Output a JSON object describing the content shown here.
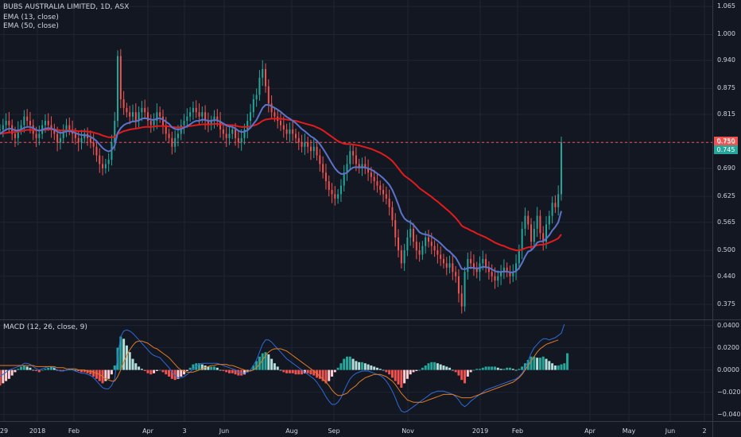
{
  "header": {
    "symbol": "BUBS AUSTRALIA LIMITED, 1D, ASX",
    "ema13": "EMA (13, close)",
    "ema50": "EMA (50, close)",
    "macd": "MACD (12, 26, close, 9)"
  },
  "price_badges": {
    "last": "0.750",
    "prev": "0.745"
  },
  "colors": {
    "bg": "#131722",
    "grid": "#1f2433",
    "up": "#26a69a",
    "down": "#ef5350",
    "ema13": "#5b74c9",
    "ema50": "#e31b1b",
    "macd": "#2f6ad6",
    "signal": "#e07b24"
  },
  "chart_data": {
    "type": "candlestick",
    "price_ticks": [
      "1.065",
      "1.000",
      "0.940",
      "0.875",
      "0.815",
      "0.750",
      "0.690",
      "0.625",
      "0.565",
      "0.500",
      "0.440",
      "0.375"
    ],
    "macd_ticks": [
      "0.0400",
      "0.0200",
      "0.0000",
      "−0.0200",
      "−0.0400"
    ],
    "x_ticks": [
      "29",
      "2018",
      "Feb",
      "Apr",
      "3",
      "Jun",
      "Aug",
      "Sep",
      "Nov",
      "2019",
      "Feb",
      "Apr",
      "May",
      "Jun",
      "2"
    ],
    "ylim": [
      0.34,
      1.08
    ],
    "macd_ylim": [
      -0.046,
      0.044
    ],
    "close": [
      0.78,
      0.79,
      0.8,
      0.79,
      0.77,
      0.76,
      0.78,
      0.79,
      0.81,
      0.8,
      0.79,
      0.77,
      0.76,
      0.77,
      0.79,
      0.8,
      0.79,
      0.78,
      0.77,
      0.75,
      0.76,
      0.78,
      0.79,
      0.78,
      0.77,
      0.76,
      0.75,
      0.76,
      0.77,
      0.76,
      0.75,
      0.74,
      0.72,
      0.7,
      0.69,
      0.7,
      0.71,
      0.75,
      0.8,
      0.95,
      0.85,
      0.83,
      0.82,
      0.81,
      0.82,
      0.8,
      0.82,
      0.83,
      0.82,
      0.8,
      0.79,
      0.8,
      0.82,
      0.81,
      0.79,
      0.77,
      0.76,
      0.74,
      0.76,
      0.77,
      0.79,
      0.8,
      0.81,
      0.82,
      0.83,
      0.82,
      0.81,
      0.82,
      0.8,
      0.79,
      0.8,
      0.81,
      0.8,
      0.78,
      0.77,
      0.76,
      0.77,
      0.78,
      0.76,
      0.75,
      0.76,
      0.78,
      0.8,
      0.82,
      0.85,
      0.86,
      0.9,
      0.92,
      0.88,
      0.84,
      0.82,
      0.81,
      0.8,
      0.79,
      0.78,
      0.77,
      0.78,
      0.77,
      0.76,
      0.75,
      0.74,
      0.75,
      0.74,
      0.73,
      0.74,
      0.72,
      0.7,
      0.68,
      0.66,
      0.64,
      0.63,
      0.62,
      0.63,
      0.65,
      0.68,
      0.7,
      0.73,
      0.72,
      0.7,
      0.69,
      0.7,
      0.69,
      0.68,
      0.67,
      0.66,
      0.65,
      0.64,
      0.63,
      0.62,
      0.6,
      0.57,
      0.53,
      0.5,
      0.47,
      0.5,
      0.53,
      0.55,
      0.52,
      0.5,
      0.49,
      0.51,
      0.53,
      0.52,
      0.51,
      0.5,
      0.49,
      0.48,
      0.47,
      0.46,
      0.47,
      0.45,
      0.44,
      0.4,
      0.37,
      0.45,
      0.48,
      0.47,
      0.46,
      0.45,
      0.47,
      0.48,
      0.46,
      0.45,
      0.44,
      0.43,
      0.44,
      0.45,
      0.46,
      0.45,
      0.44,
      0.45,
      0.47,
      0.5,
      0.55,
      0.58,
      0.56,
      0.52,
      0.55,
      0.58,
      0.54,
      0.52,
      0.56,
      0.58,
      0.61,
      0.6,
      0.63,
      0.75
    ],
    "ema13": [
      0.77,
      0.775,
      0.78,
      0.782,
      0.781,
      0.778,
      0.778,
      0.78,
      0.784,
      0.786,
      0.786,
      0.783,
      0.779,
      0.777,
      0.779,
      0.782,
      0.783,
      0.782,
      0.78,
      0.775,
      0.772,
      0.773,
      0.776,
      0.776,
      0.775,
      0.772,
      0.769,
      0.767,
      0.767,
      0.766,
      0.763,
      0.759,
      0.753,
      0.745,
      0.737,
      0.732,
      0.729,
      0.732,
      0.742,
      0.772,
      0.783,
      0.79,
      0.794,
      0.796,
      0.799,
      0.799,
      0.801,
      0.805,
      0.806,
      0.805,
      0.803,
      0.802,
      0.805,
      0.806,
      0.803,
      0.798,
      0.793,
      0.785,
      0.781,
      0.78,
      0.781,
      0.784,
      0.788,
      0.792,
      0.797,
      0.8,
      0.8,
      0.803,
      0.802,
      0.8,
      0.8,
      0.802,
      0.801,
      0.798,
      0.794,
      0.789,
      0.787,
      0.786,
      0.782,
      0.777,
      0.774,
      0.775,
      0.778,
      0.784,
      0.793,
      0.802,
      0.816,
      0.83,
      0.837,
      0.837,
      0.834,
      0.83,
      0.826,
      0.821,
      0.815,
      0.809,
      0.805,
      0.8,
      0.795,
      0.788,
      0.781,
      0.776,
      0.77,
      0.764,
      0.76,
      0.754,
      0.746,
      0.736,
      0.725,
      0.713,
      0.701,
      0.69,
      0.682,
      0.677,
      0.677,
      0.68,
      0.687,
      0.692,
      0.693,
      0.692,
      0.693,
      0.692,
      0.69,
      0.687,
      0.683,
      0.678,
      0.673,
      0.667,
      0.66,
      0.652,
      0.64,
      0.624,
      0.606,
      0.586,
      0.574,
      0.568,
      0.565,
      0.559,
      0.551,
      0.542,
      0.538,
      0.537,
      0.535,
      0.532,
      0.527,
      0.522,
      0.516,
      0.509,
      0.502,
      0.497,
      0.49,
      0.483,
      0.471,
      0.457,
      0.456,
      0.459,
      0.46,
      0.459,
      0.458,
      0.459,
      0.462,
      0.461,
      0.46,
      0.456,
      0.452,
      0.45,
      0.45,
      0.451,
      0.451,
      0.449,
      0.449,
      0.452,
      0.459,
      0.471,
      0.486,
      0.497,
      0.5,
      0.507,
      0.518,
      0.521,
      0.521,
      0.527,
      0.535,
      0.546,
      0.554,
      0.565,
      0.591
    ],
    "ema50": [
      0.77,
      0.771,
      0.772,
      0.773,
      0.774,
      0.774,
      0.775,
      0.776,
      0.778,
      0.779,
      0.779,
      0.779,
      0.778,
      0.778,
      0.779,
      0.779,
      0.78,
      0.78,
      0.78,
      0.779,
      0.778,
      0.778,
      0.778,
      0.778,
      0.778,
      0.777,
      0.776,
      0.776,
      0.776,
      0.775,
      0.775,
      0.773,
      0.771,
      0.769,
      0.766,
      0.764,
      0.762,
      0.762,
      0.763,
      0.77,
      0.773,
      0.776,
      0.778,
      0.78,
      0.781,
      0.782,
      0.783,
      0.785,
      0.786,
      0.786,
      0.786,
      0.787,
      0.788,
      0.788,
      0.788,
      0.788,
      0.787,
      0.786,
      0.785,
      0.785,
      0.785,
      0.786,
      0.787,
      0.788,
      0.789,
      0.79,
      0.791,
      0.792,
      0.792,
      0.792,
      0.792,
      0.793,
      0.793,
      0.792,
      0.792,
      0.791,
      0.79,
      0.79,
      0.789,
      0.787,
      0.786,
      0.786,
      0.786,
      0.787,
      0.789,
      0.791,
      0.795,
      0.8,
      0.803,
      0.804,
      0.805,
      0.805,
      0.805,
      0.805,
      0.804,
      0.803,
      0.802,
      0.801,
      0.8,
      0.798,
      0.796,
      0.794,
      0.792,
      0.79,
      0.788,
      0.785,
      0.782,
      0.778,
      0.773,
      0.768,
      0.763,
      0.758,
      0.753,
      0.75,
      0.747,
      0.746,
      0.746,
      0.745,
      0.744,
      0.743,
      0.741,
      0.739,
      0.737,
      0.735,
      0.732,
      0.729,
      0.726,
      0.722,
      0.718,
      0.713,
      0.707,
      0.699,
      0.69,
      0.681,
      0.673,
      0.668,
      0.663,
      0.657,
      0.651,
      0.644,
      0.639,
      0.634,
      0.629,
      0.624,
      0.618,
      0.613,
      0.607,
      0.601,
      0.595,
      0.589,
      0.582,
      0.575,
      0.567,
      0.557,
      0.553,
      0.55,
      0.546,
      0.543,
      0.539,
      0.536,
      0.533,
      0.53,
      0.526,
      0.522,
      0.518,
      0.515,
      0.512,
      0.51,
      0.507,
      0.504,
      0.502,
      0.5,
      0.5,
      0.502,
      0.505,
      0.507,
      0.508,
      0.509,
      0.512,
      0.513,
      0.513,
      0.515,
      0.518,
      0.521,
      0.524,
      0.528,
      0.537
    ],
    "macd_hist": [
      -0.014,
      -0.012,
      -0.01,
      -0.008,
      -0.005,
      -0.002,
      0.001,
      0.003,
      0.004,
      0.003,
      0.002,
      0.0,
      -0.001,
      -0.002,
      0.0,
      0.001,
      0.002,
      0.003,
      0.002,
      0.0,
      -0.001,
      -0.001,
      0.0,
      0.001,
      0.001,
      0.0,
      -0.001,
      -0.002,
      -0.002,
      -0.003,
      -0.004,
      -0.006,
      -0.008,
      -0.01,
      -0.012,
      -0.01,
      -0.008,
      -0.004,
      0.004,
      0.02,
      0.03,
      0.028,
      0.022,
      0.016,
      0.01,
      0.006,
      0.003,
      0.001,
      -0.001,
      -0.003,
      -0.004,
      -0.003,
      -0.001,
      0.0,
      -0.002,
      -0.004,
      -0.006,
      -0.008,
      -0.009,
      -0.008,
      -0.006,
      -0.004,
      -0.001,
      0.002,
      0.005,
      0.006,
      0.006,
      0.005,
      0.004,
      0.003,
      0.003,
      0.003,
      0.002,
      0.0,
      -0.001,
      -0.002,
      -0.003,
      -0.003,
      -0.004,
      -0.005,
      -0.005,
      -0.004,
      -0.002,
      0.0,
      0.004,
      0.008,
      0.012,
      0.015,
      0.016,
      0.014,
      0.01,
      0.006,
      0.003,
      0.0,
      -0.002,
      -0.003,
      -0.003,
      -0.003,
      -0.004,
      -0.004,
      -0.004,
      -0.003,
      -0.003,
      -0.004,
      -0.005,
      -0.007,
      -0.008,
      -0.01,
      -0.012,
      -0.01,
      -0.006,
      -0.002,
      0.002,
      0.006,
      0.01,
      0.012,
      0.012,
      0.01,
      0.008,
      0.007,
      0.007,
      0.006,
      0.005,
      0.004,
      0.003,
      0.002,
      0.001,
      0.0,
      -0.002,
      -0.004,
      -0.007,
      -0.01,
      -0.013,
      -0.016,
      -0.012,
      -0.008,
      -0.004,
      -0.002,
      -0.001,
      0.0,
      0.002,
      0.004,
      0.006,
      0.007,
      0.007,
      0.006,
      0.005,
      0.004,
      0.003,
      0.002,
      0.0,
      -0.002,
      -0.005,
      -0.009,
      -0.012,
      -0.006,
      -0.002,
      0.0,
      0.001,
      0.001,
      0.002,
      0.003,
      0.003,
      0.003,
      0.003,
      0.002,
      0.001,
      0.001,
      0.002,
      0.002,
      0.001,
      0.0,
      0.001,
      0.003,
      0.006,
      0.009,
      0.012,
      0.012,
      0.011,
      0.011,
      0.012,
      0.01,
      0.008,
      0.006,
      0.004,
      0.004,
      0.005,
      0.006,
      0.015
    ],
    "macd_line": [
      -0.006,
      -0.004,
      -0.002,
      0.0,
      0.001,
      0.002,
      0.003,
      0.004,
      0.006,
      0.006,
      0.005,
      0.003,
      0.001,
      0.0,
      0.001,
      0.002,
      0.003,
      0.003,
      0.002,
      0.0,
      -0.001,
      -0.001,
      0.0,
      0.0,
      0.0,
      -0.001,
      -0.002,
      -0.003,
      -0.003,
      -0.004,
      -0.005,
      -0.007,
      -0.01,
      -0.013,
      -0.016,
      -0.017,
      -0.017,
      -0.014,
      -0.008,
      0.012,
      0.03,
      0.035,
      0.036,
      0.035,
      0.033,
      0.03,
      0.027,
      0.024,
      0.021,
      0.018,
      0.015,
      0.013,
      0.012,
      0.011,
      0.008,
      0.005,
      0.002,
      -0.002,
      -0.005,
      -0.007,
      -0.007,
      -0.006,
      -0.004,
      -0.002,
      0.001,
      0.003,
      0.005,
      0.006,
      0.006,
      0.006,
      0.006,
      0.006,
      0.006,
      0.005,
      0.004,
      0.003,
      0.002,
      0.001,
      0.0,
      -0.002,
      -0.003,
      -0.003,
      -0.002,
      0.0,
      0.004,
      0.009,
      0.016,
      0.023,
      0.027,
      0.027,
      0.025,
      0.022,
      0.019,
      0.016,
      0.013,
      0.01,
      0.008,
      0.006,
      0.004,
      0.002,
      0.0,
      -0.002,
      -0.004,
      -0.006,
      -0.008,
      -0.011,
      -0.015,
      -0.019,
      -0.024,
      -0.028,
      -0.031,
      -0.031,
      -0.029,
      -0.025,
      -0.019,
      -0.013,
      -0.008,
      -0.005,
      -0.003,
      -0.002,
      -0.001,
      -0.001,
      -0.001,
      -0.002,
      -0.003,
      -0.004,
      -0.005,
      -0.007,
      -0.01,
      -0.014,
      -0.019,
      -0.025,
      -0.032,
      -0.037,
      -0.038,
      -0.037,
      -0.035,
      -0.033,
      -0.031,
      -0.029,
      -0.027,
      -0.025,
      -0.023,
      -0.021,
      -0.02,
      -0.019,
      -0.019,
      -0.019,
      -0.02,
      -0.021,
      -0.022,
      -0.024,
      -0.027,
      -0.031,
      -0.033,
      -0.031,
      -0.028,
      -0.026,
      -0.024,
      -0.022,
      -0.02,
      -0.018,
      -0.017,
      -0.016,
      -0.015,
      -0.014,
      -0.013,
      -0.012,
      -0.011,
      -0.01,
      -0.009,
      -0.008,
      -0.006,
      -0.003,
      0.002,
      0.008,
      0.015,
      0.02,
      0.023,
      0.026,
      0.028,
      0.028,
      0.027,
      0.028,
      0.029,
      0.031,
      0.033,
      0.041
    ],
    "signal_line": [
      0.004,
      0.004,
      0.004,
      0.004,
      0.004,
      0.004,
      0.004,
      0.004,
      0.004,
      0.004,
      0.004,
      0.004,
      0.003,
      0.003,
      0.003,
      0.003,
      0.003,
      0.003,
      0.003,
      0.002,
      0.002,
      0.002,
      0.001,
      0.001,
      0.001,
      0.001,
      0.0,
      0.0,
      0.0,
      -0.001,
      -0.001,
      -0.002,
      -0.003,
      -0.004,
      -0.006,
      -0.008,
      -0.009,
      -0.01,
      -0.01,
      -0.006,
      0.0,
      0.007,
      0.013,
      0.018,
      0.022,
      0.025,
      0.026,
      0.026,
      0.025,
      0.024,
      0.022,
      0.02,
      0.019,
      0.017,
      0.015,
      0.013,
      0.011,
      0.008,
      0.005,
      0.002,
      0.0,
      -0.001,
      -0.002,
      -0.002,
      -0.002,
      -0.001,
      0.0,
      0.001,
      0.002,
      0.003,
      0.004,
      0.004,
      0.005,
      0.005,
      0.005,
      0.005,
      0.004,
      0.004,
      0.003,
      0.002,
      0.001,
      0.0,
      -0.001,
      -0.001,
      0.0,
      0.002,
      0.005,
      0.009,
      0.013,
      0.016,
      0.018,
      0.019,
      0.019,
      0.019,
      0.018,
      0.017,
      0.015,
      0.013,
      0.011,
      0.009,
      0.007,
      0.005,
      0.003,
      0.001,
      -0.001,
      -0.003,
      -0.006,
      -0.008,
      -0.011,
      -0.014,
      -0.018,
      -0.021,
      -0.023,
      -0.023,
      -0.022,
      -0.021,
      -0.018,
      -0.016,
      -0.014,
      -0.011,
      -0.009,
      -0.007,
      -0.006,
      -0.005,
      -0.004,
      -0.004,
      -0.004,
      -0.005,
      -0.006,
      -0.008,
      -0.01,
      -0.013,
      -0.017,
      -0.021,
      -0.024,
      -0.027,
      -0.028,
      -0.029,
      -0.029,
      -0.029,
      -0.029,
      -0.028,
      -0.027,
      -0.026,
      -0.025,
      -0.024,
      -0.023,
      -0.022,
      -0.022,
      -0.022,
      -0.022,
      -0.023,
      -0.024,
      -0.025,
      -0.025,
      -0.025,
      -0.025,
      -0.024,
      -0.023,
      -0.022,
      -0.021,
      -0.02,
      -0.019,
      -0.018,
      -0.017,
      -0.016,
      -0.015,
      -0.014,
      -0.013,
      -0.012,
      -0.011,
      -0.009,
      -0.007,
      -0.004,
      0.0,
      0.004,
      0.008,
      0.012,
      0.016,
      0.019,
      0.021,
      0.023,
      0.024,
      0.025,
      0.026,
      0.027
    ]
  }
}
